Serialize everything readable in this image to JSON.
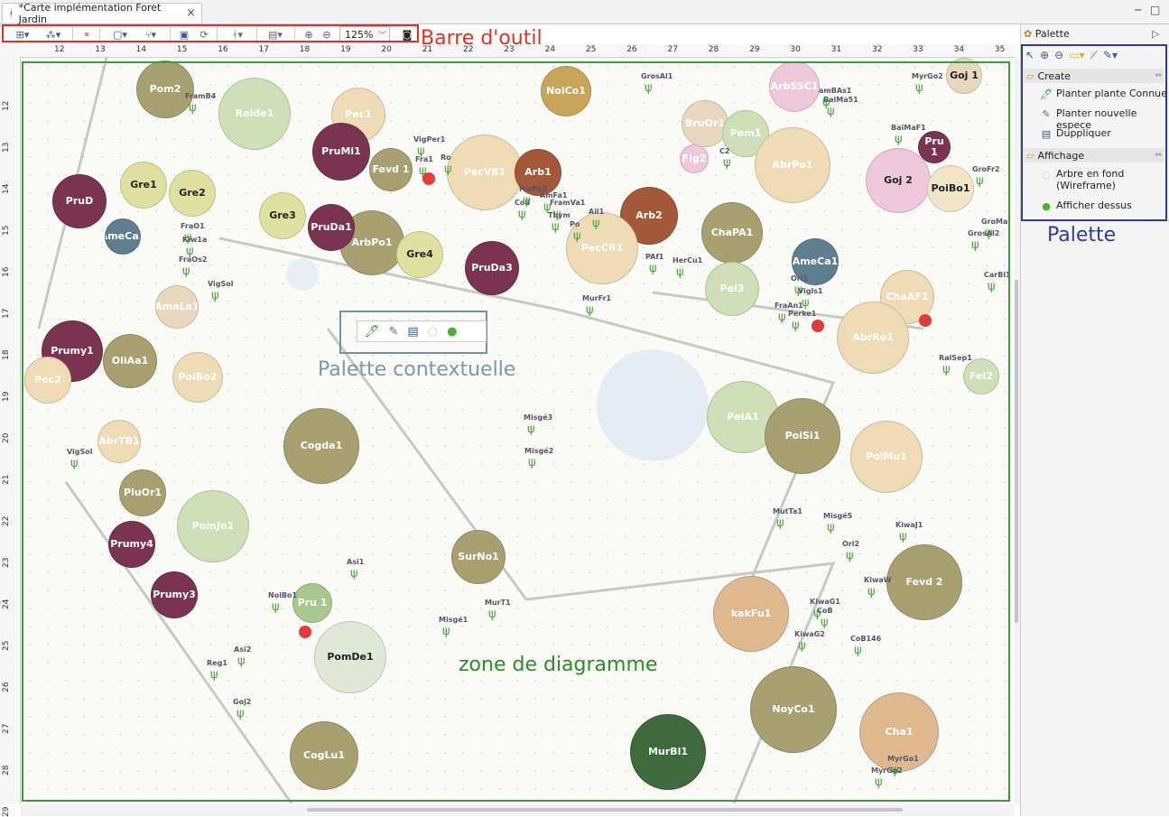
{
  "tab": {
    "title": "*Carte implémentation Foret Jardin",
    "close": "×"
  },
  "window": {
    "minimize": "─",
    "maximize": "□"
  },
  "toolbar": {
    "zoom_value": "125%",
    "label": "Barre d'outil"
  },
  "ruler": {
    "h": [
      "12",
      "13",
      "14",
      "15",
      "16",
      "17",
      "18",
      "19",
      "20",
      "21",
      "22",
      "23",
      "24",
      "25",
      "26",
      "27",
      "28",
      "29",
      "30",
      "31",
      "32",
      "33",
      "34",
      "35"
    ],
    "v": [
      "12",
      "13",
      "14",
      "15",
      "16",
      "17",
      "18",
      "19",
      "20",
      "21",
      "22",
      "23",
      "24",
      "25",
      "26",
      "27",
      "28",
      "29"
    ]
  },
  "diagram": {
    "label": "zone de diagramme",
    "context_label": "Palette contextuelle",
    "plants": [
      {
        "id": "Pom2",
        "color": "#a8a070"
      },
      {
        "id": "Reide1",
        "color": "#cfe0b8"
      },
      {
        "id": "Pec1",
        "color": "#efdcb6"
      },
      {
        "id": "PruMi1",
        "color": "#7a3350"
      },
      {
        "id": "Fevd_1",
        "label": "Fevd 1",
        "color": "#a8a070"
      },
      {
        "id": "PecVB1",
        "color": "#efdcb6"
      },
      {
        "id": "Arb1",
        "color": "#a3583a"
      },
      {
        "id": "NoiCo1",
        "color": "#c8a55a"
      },
      {
        "id": "BruOr1",
        "color": "#e8d8c0"
      },
      {
        "id": "Pom1",
        "color": "#cfe0b8"
      },
      {
        "id": "ArbSSC1",
        "color": "#f0c8dc"
      },
      {
        "id": "Fig2",
        "color": "#f0c8dc"
      },
      {
        "id": "AbrPo1",
        "color": "#efdcb6"
      },
      {
        "id": "Goj2",
        "label": "Goj 2",
        "color": "#f0c8dc",
        "dark": true
      },
      {
        "id": "PoiBo1",
        "label": "PoiBo1",
        "color": "#f3e5c8",
        "dark": true
      },
      {
        "id": "Arb2",
        "color": "#a3583a"
      },
      {
        "id": "PecCR1",
        "color": "#efdcb6"
      },
      {
        "id": "ChaPA1",
        "color": "#a8a070"
      },
      {
        "id": "AmeCa1",
        "color": "#5f7f90"
      },
      {
        "id": "Pei3",
        "color": "#cfe0b8"
      },
      {
        "id": "ChaAF1",
        "color": "#efdcb6"
      },
      {
        "id": "AbrRo1",
        "color": "#efdcb6"
      },
      {
        "id": "Fei2",
        "color": "#cfe0b8"
      },
      {
        "id": "PeiA1",
        "color": "#cfe0b8"
      },
      {
        "id": "PoiSi1",
        "color": "#a8a070"
      },
      {
        "id": "PoiMu1",
        "color": "#efdcb6"
      },
      {
        "id": "Fevd2",
        "label": "Fevd 2",
        "color": "#a8a070"
      },
      {
        "id": "kakFu1",
        "color": "#e0b890"
      },
      {
        "id": "NoyCo1",
        "color": "#a8a070"
      },
      {
        "id": "Cha1",
        "color": "#e0b890"
      },
      {
        "id": "MurBl1",
        "color": "#3e6a3e"
      },
      {
        "id": "SurNo1",
        "color": "#a8a070"
      },
      {
        "id": "PomDe1",
        "color": "#e0e8d8",
        "dark": true
      },
      {
        "id": "CogLu1",
        "color": "#a8a070"
      },
      {
        "id": "Prumy3",
        "color": "#7a3350"
      },
      {
        "id": "Prumy4",
        "color": "#7a3350"
      },
      {
        "id": "AbrTB1",
        "color": "#efdcb6"
      },
      {
        "id": "PomJo1",
        "color": "#cfe0b8"
      },
      {
        "id": "Cogda1",
        "color": "#a8a070"
      },
      {
        "id": "Prumy1",
        "color": "#7a3350"
      },
      {
        "id": "PoiBo2",
        "color": "#efdcb6"
      },
      {
        "id": "ArbPo1",
        "color": "#a8a070"
      },
      {
        "id": "PruDa1",
        "color": "#7a3350"
      },
      {
        "id": "Gre1",
        "color": "#e0e0a0",
        "dark": true
      },
      {
        "id": "Gre2",
        "color": "#e0e0a0",
        "dark": true
      },
      {
        "id": "Gre3",
        "color": "#e0e0a0",
        "dark": true
      },
      {
        "id": "Gre4",
        "color": "#e0e0a0",
        "dark": true
      },
      {
        "id": "PruD",
        "color": "#7a3350"
      },
      {
        "id": "AmeCa2",
        "color": "#5f7f90"
      },
      {
        "id": "AmaLa1",
        "color": "#e8d8c0"
      },
      {
        "id": "Pec2",
        "color": "#efdcb6"
      },
      {
        "id": "OliAa1",
        "color": "#a8a070"
      },
      {
        "id": "PruDa3",
        "color": "#7a3350"
      },
      {
        "id": "Goj1",
        "label": "Goj 1",
        "color": "#e8d8c0",
        "dark": true
      },
      {
        "id": "Pru1",
        "label": "Pru 1",
        "color": "#7a3350"
      },
      {
        "id": "Pru1b",
        "label": "Pru 1",
        "color": "#a8c890"
      },
      {
        "id": "PluOr1",
        "color": "#a8a070"
      }
    ],
    "small_labels": [
      "FramB4",
      "VigPer1",
      "Fra1",
      "Ro",
      "CoB",
      "FraPa2",
      "AmFa1",
      "FramVa1",
      "Thym",
      "Po",
      "Ail1",
      "PAf1",
      "HerCu1",
      "MurFr1",
      "GrosAl1",
      "BaiMa51",
      "BaiMaF1",
      "C2",
      "amBAs1",
      "GroFr2",
      "GroMa",
      "GrosAl2",
      "CarBl1",
      "Ori1",
      "Vigls1",
      "FraAn1",
      "Perke1",
      "RaiSep1",
      "Misgé3",
      "Misgé2",
      "Misgé5",
      "MurT1",
      "Misgé1",
      "Reg1",
      "Goj2",
      "MutTa1",
      "KiwaJ1",
      "Ori2",
      "KiwaW",
      "KiwaG1",
      "KiwaG2",
      "CoB",
      "CoB146",
      "MyrGo1",
      "MyrGo2",
      "VigSol",
      "FraO1",
      "Kiw1a",
      "FraOs2",
      "VigSol",
      "Asi1",
      "Asi2",
      "NoiBo1",
      "MyrGo2"
    ]
  },
  "palette": {
    "title": "Palette",
    "label": "Palette",
    "create": {
      "title": "Create",
      "items": [
        "Planter plante Connue",
        "Planter nouvelle espece",
        "Duppliquer"
      ]
    },
    "display": {
      "title": "Affichage",
      "items": [
        "Arbre en fond (Wireframe)",
        "Afficher dessus"
      ]
    }
  }
}
